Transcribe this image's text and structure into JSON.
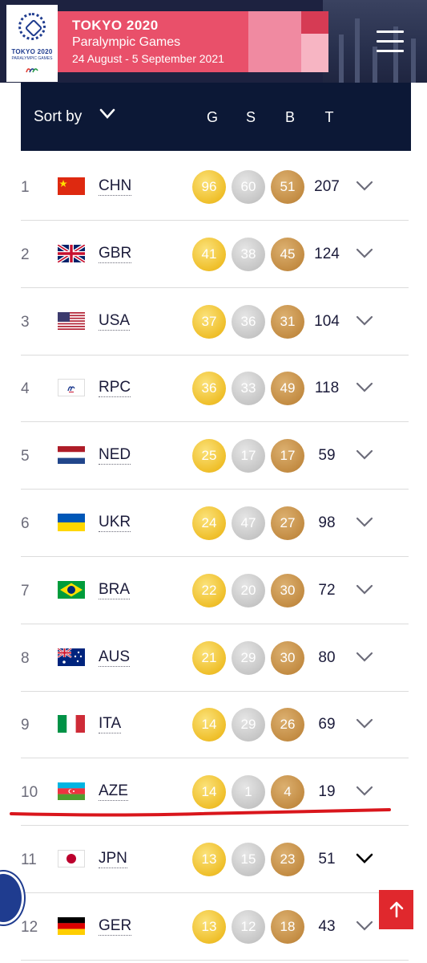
{
  "header": {
    "logo_text": "TOKYO 2020",
    "logo_sub": "PARALYMPIC GAMES",
    "title": "TOKYO 2020",
    "subtitle": "Paralympic Games",
    "dates": "24 August - 5 September 2021",
    "menu_icon": "hamburger-icon"
  },
  "sortbar": {
    "label": "Sort by",
    "columns": {
      "gold": "G",
      "silver": "S",
      "bronze": "B",
      "total": "T"
    }
  },
  "rows": [
    {
      "rank": "1",
      "code": "CHN",
      "gold": "96",
      "silver": "60",
      "bronze": "51",
      "total": "207"
    },
    {
      "rank": "2",
      "code": "GBR",
      "gold": "41",
      "silver": "38",
      "bronze": "45",
      "total": "124"
    },
    {
      "rank": "3",
      "code": "USA",
      "gold": "37",
      "silver": "36",
      "bronze": "31",
      "total": "104"
    },
    {
      "rank": "4",
      "code": "RPC",
      "gold": "36",
      "silver": "33",
      "bronze": "49",
      "total": "118"
    },
    {
      "rank": "5",
      "code": "NED",
      "gold": "25",
      "silver": "17",
      "bronze": "17",
      "total": "59"
    },
    {
      "rank": "6",
      "code": "UKR",
      "gold": "24",
      "silver": "47",
      "bronze": "27",
      "total": "98"
    },
    {
      "rank": "7",
      "code": "BRA",
      "gold": "22",
      "silver": "20",
      "bronze": "30",
      "total": "72"
    },
    {
      "rank": "8",
      "code": "AUS",
      "gold": "21",
      "silver": "29",
      "bronze": "30",
      "total": "80"
    },
    {
      "rank": "9",
      "code": "ITA",
      "gold": "14",
      "silver": "29",
      "bronze": "26",
      "total": "69"
    },
    {
      "rank": "10",
      "code": "AZE",
      "gold": "14",
      "silver": "1",
      "bronze": "4",
      "total": "19"
    },
    {
      "rank": "11",
      "code": "JPN",
      "gold": "13",
      "silver": "15",
      "bronze": "23",
      "total": "51"
    },
    {
      "rank": "12",
      "code": "GER",
      "gold": "13",
      "silver": "12",
      "bronze": "18",
      "total": "43"
    }
  ],
  "colors": {
    "header_bg": "#1d2240",
    "banner": "#e9506a",
    "sortbar_bg": "#0c1836",
    "gold": "#efbf2a",
    "silver": "#c6c6c6",
    "bronze": "#c38c43",
    "highlight_underline": "#d9161c",
    "scroll_top_button": "#e0282d"
  },
  "icons": {
    "sort_chevron": "chevron-down-icon",
    "row_expand": "chevron-down-icon",
    "scroll_top": "arrow-up-icon"
  }
}
